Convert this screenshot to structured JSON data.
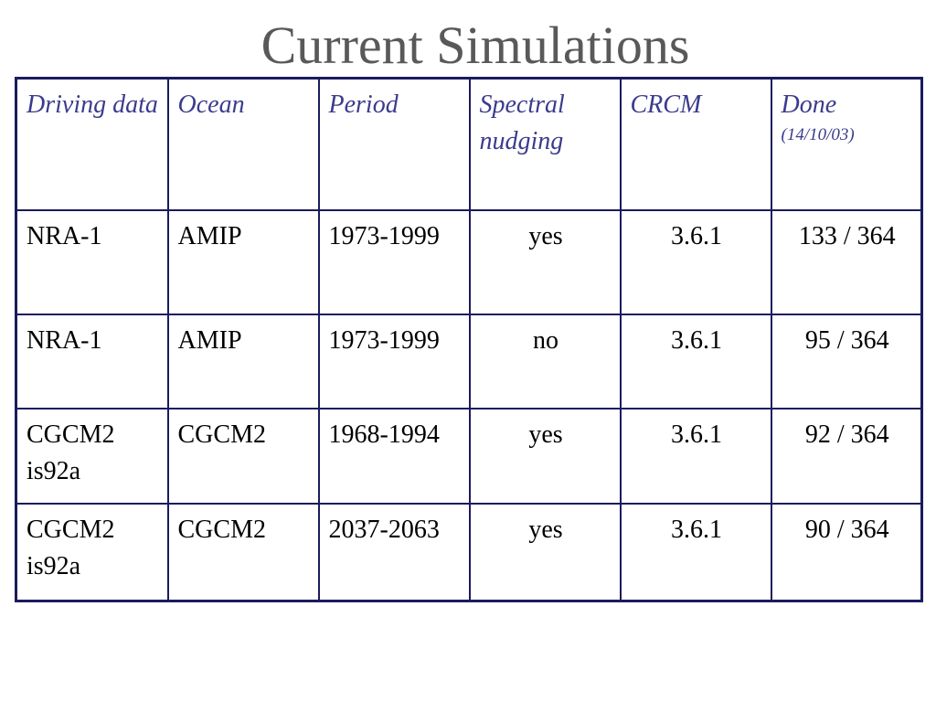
{
  "slide": {
    "title": "Current Simulations"
  },
  "table": {
    "headers": [
      {
        "label": "Driving data"
      },
      {
        "label": "Ocean"
      },
      {
        "label": "Period"
      },
      {
        "label": "Spectral nudging"
      },
      {
        "label": "CRCM"
      },
      {
        "label": "Done",
        "sub": "(14/10/03)"
      }
    ],
    "rows": [
      {
        "driving": "NRA-1",
        "ocean": "AMIP",
        "period": "1973-1999",
        "nudging": "yes",
        "crcm": "3.6.1",
        "done": "133 / 364"
      },
      {
        "driving": "NRA-1",
        "ocean": "AMIP",
        "period": "1973-1999",
        "nudging": "no",
        "crcm": "3.6.1",
        "done": "95 / 364"
      },
      {
        "driving": "CGCM2 is92a",
        "ocean": "CGCM2",
        "period": "1968-1994",
        "nudging": "yes",
        "crcm": "3.6.1",
        "done": "92 / 364"
      },
      {
        "driving": "CGCM2 is92a",
        "ocean": "CGCM2",
        "period": "2037-2063",
        "nudging": "yes",
        "crcm": "3.6.1",
        "done": "90 / 364"
      }
    ]
  }
}
